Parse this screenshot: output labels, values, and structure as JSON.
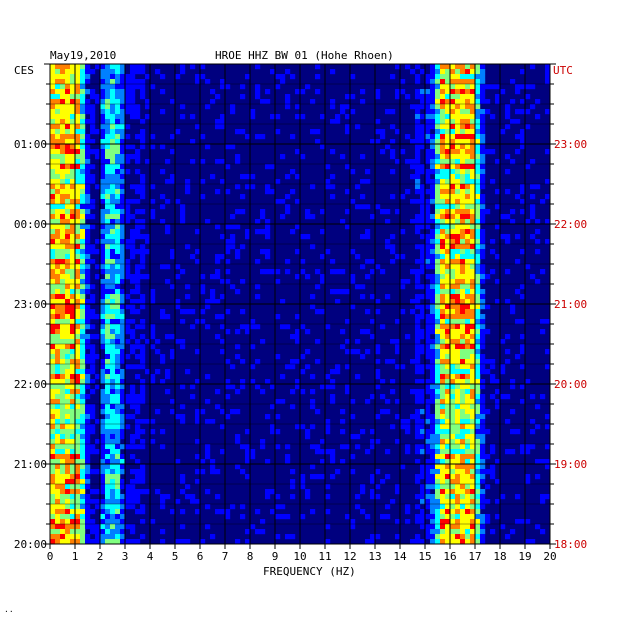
{
  "header": {
    "date": "May19,2010",
    "title": "HROE HHZ BW 01 (Hohe Rhoen)",
    "left_zone": "CES",
    "right_zone": "UTC"
  },
  "chart_data": {
    "type": "heatmap",
    "title": "HROE HHZ BW 01 (Hohe Rhoen)",
    "xlabel": "FREQUENCY (HZ)",
    "xlim": [
      0,
      20
    ],
    "x_ticks": [
      "0",
      "1",
      "2",
      "3",
      "4",
      "5",
      "6",
      "7",
      "8",
      "9",
      "10",
      "11",
      "12",
      "13",
      "14",
      "15",
      "16",
      "17",
      "18",
      "19",
      "20"
    ],
    "left_time_labels": [
      "01:00",
      "00:00",
      "23:00",
      "22:00",
      "21:00",
      "20:00"
    ],
    "right_time_labels": [
      "23:00",
      "22:00",
      "21:00",
      "20:00",
      "19:00",
      "18:00"
    ],
    "time_span_hours": 6,
    "colormap": [
      "#00007f",
      "#0000ff",
      "#0080ff",
      "#00ffff",
      "#80ff80",
      "#ffff00",
      "#ff8000",
      "#ff0000",
      "#7f0000"
    ],
    "energy_bands": [
      {
        "f_min": 0.2,
        "f_max": 1.0,
        "level": "high"
      },
      {
        "f_min": 2.45,
        "f_max": 2.55,
        "level": "medium"
      },
      {
        "f_min": 15.8,
        "f_max": 16.8,
        "level": "high"
      }
    ]
  },
  "colors": {
    "background": "#00007f",
    "grid": "#000000",
    "left_labels": "#000000",
    "right_labels": "#cc0000"
  }
}
